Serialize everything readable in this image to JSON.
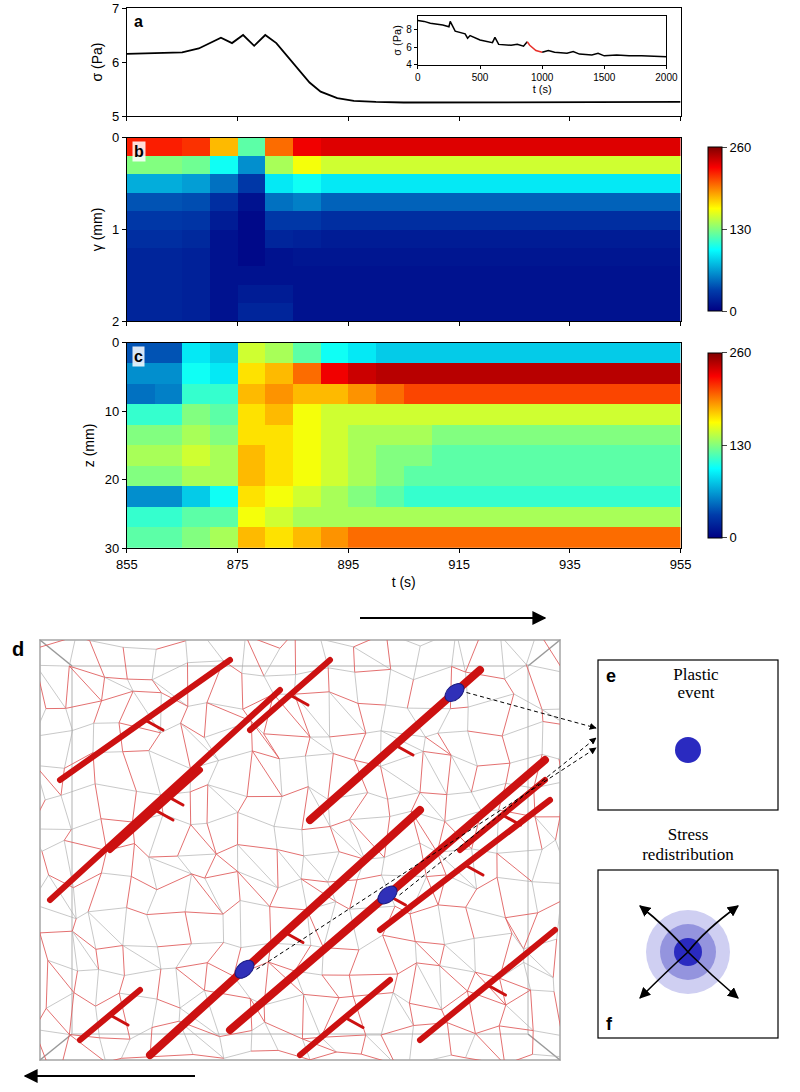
{
  "chart_data": [
    {
      "type": "line",
      "title": "a",
      "x": [
        855,
        860,
        865,
        868,
        870,
        872,
        874,
        876,
        878,
        880,
        882,
        884,
        886,
        888,
        890,
        893,
        896,
        900,
        905,
        910,
        920,
        930,
        940,
        955
      ],
      "values": [
        6.15,
        6.16,
        6.18,
        6.25,
        6.35,
        6.45,
        6.35,
        6.5,
        6.3,
        6.5,
        6.35,
        6.1,
        5.85,
        5.62,
        5.45,
        5.33,
        5.28,
        5.26,
        5.25,
        5.25,
        5.25,
        5.26,
        5.26,
        5.26
      ],
      "color": "#000000",
      "xlim": [
        855,
        955
      ],
      "xticks": [
        855,
        875,
        895,
        915,
        935,
        955
      ],
      "ylim": [
        5,
        7
      ],
      "yticks": [
        5,
        6,
        7
      ],
      "ylabel": "σ (Pa)",
      "tick_labels": "y"
    },
    {
      "type": "line",
      "xlabel": "t (s)",
      "ylabel": "σ (Pa)",
      "xlim": [
        0,
        2000
      ],
      "xticks": [
        0,
        500,
        1000,
        1500,
        2000
      ],
      "ylim": [
        4,
        9.5
      ],
      "yticks": [
        4,
        6,
        8
      ],
      "series": [
        {
          "color": "#000000",
          "x": [
            0,
            50,
            100,
            200,
            250,
            260,
            300,
            380,
            400,
            420,
            500,
            600,
            620,
            650,
            750,
            800,
            850,
            880,
            940,
            1000,
            1050,
            1100,
            1200,
            1250,
            1300,
            1400,
            1450,
            1500,
            1600,
            1700,
            1800,
            2000
          ],
          "values": [
            9.0,
            8.9,
            8.7,
            8.5,
            8.3,
            8.9,
            7.8,
            7.5,
            7.0,
            7.3,
            6.8,
            6.5,
            7.1,
            6.3,
            6.2,
            6.3,
            6.1,
            6.6,
            null,
            5.4,
            5.6,
            5.4,
            5.3,
            5.5,
            5.2,
            5.1,
            5.3,
            5.0,
            5.1,
            5.0,
            5.0,
            4.9
          ]
        },
        {
          "color": "#e8302a",
          "x": [
            880,
            900,
            950,
            1000
          ],
          "values": [
            6.6,
            6.2,
            5.6,
            5.4
          ]
        }
      ]
    },
    {
      "type": "heatmap",
      "title": "b",
      "x": [
        857.5,
        862.5,
        867.5,
        872.5,
        877.5,
        882.5,
        887.5,
        892.5,
        897.5,
        902.5,
        907.5,
        912.5,
        917.5,
        922.5,
        927.5,
        932.5,
        937.5,
        942.5,
        947.5,
        952.5
      ],
      "y": [
        0.1,
        0.3,
        0.5,
        0.7,
        0.9,
        1.1,
        1.3,
        1.5,
        1.7,
        1.9
      ],
      "cells": [
        [
          220,
          220,
          215,
          180,
          120,
          200,
          230,
          235,
          235,
          235,
          235,
          235,
          235,
          235,
          235,
          235,
          235,
          235,
          235,
          235
        ],
        [
          130,
          130,
          125,
          100,
          60,
          140,
          160,
          150,
          150,
          150,
          150,
          150,
          150,
          150,
          150,
          150,
          150,
          150,
          150,
          150
        ],
        [
          70,
          70,
          65,
          50,
          30,
          90,
          100,
          90,
          90,
          90,
          90,
          90,
          90,
          90,
          90,
          90,
          90,
          90,
          90,
          90
        ],
        [
          40,
          40,
          38,
          25,
          10,
          50,
          55,
          45,
          45,
          45,
          45,
          45,
          45,
          45,
          45,
          45,
          45,
          45,
          45,
          45
        ],
        [
          30,
          30,
          28,
          15,
          5,
          30,
          30,
          25,
          25,
          25,
          25,
          25,
          25,
          25,
          25,
          25,
          25,
          25,
          25,
          25
        ],
        [
          25,
          25,
          22,
          10,
          5,
          20,
          18,
          15,
          15,
          15,
          15,
          15,
          15,
          15,
          15,
          15,
          15,
          15,
          15,
          15
        ],
        [
          20,
          20,
          18,
          10,
          5,
          10,
          12,
          12,
          12,
          12,
          12,
          12,
          12,
          12,
          12,
          12,
          12,
          12,
          12,
          12
        ],
        [
          20,
          20,
          18,
          10,
          10,
          10,
          10,
          10,
          10,
          10,
          10,
          10,
          10,
          10,
          10,
          10,
          10,
          10,
          10,
          10
        ],
        [
          20,
          20,
          18,
          10,
          15,
          15,
          10,
          10,
          10,
          10,
          10,
          10,
          10,
          10,
          10,
          10,
          10,
          10,
          10,
          10
        ],
        [
          20,
          20,
          18,
          10,
          20,
          20,
          10,
          10,
          10,
          10,
          10,
          10,
          10,
          10,
          10,
          10,
          10,
          10,
          10,
          10
        ]
      ],
      "xlim": [
        855,
        955
      ],
      "xticks": [
        855,
        875,
        895,
        915,
        935,
        955
      ],
      "ylim": [
        2,
        0
      ],
      "yticks": [
        0,
        1,
        2
      ],
      "ylabel": "γ (mm)",
      "zlim": [
        0,
        260
      ],
      "zticks": [
        0,
        130,
        260
      ],
      "tick_labels": "y"
    },
    {
      "type": "heatmap",
      "title": "c",
      "x": [
        857.5,
        862.5,
        867.5,
        872.5,
        877.5,
        882.5,
        887.5,
        892.5,
        897.5,
        902.5,
        907.5,
        912.5,
        917.5,
        922.5,
        927.5,
        932.5,
        937.5,
        942.5,
        947.5,
        952.5
      ],
      "y": [
        1.5,
        4.5,
        7.5,
        10.5,
        13.5,
        16.5,
        19.5,
        22.5,
        25.5,
        28.5
      ],
      "cells": [
        [
          40,
          40,
          90,
          80,
          150,
          140,
          120,
          100,
          90,
          80,
          80,
          80,
          80,
          80,
          80,
          80,
          80,
          80,
          80,
          80
        ],
        [
          60,
          60,
          100,
          90,
          170,
          180,
          200,
          230,
          240,
          245,
          245,
          245,
          245,
          245,
          245,
          245,
          245,
          245,
          245,
          245
        ],
        [
          50,
          55,
          110,
          110,
          180,
          190,
          180,
          180,
          190,
          200,
          210,
          210,
          210,
          210,
          210,
          210,
          210,
          210,
          210,
          210
        ],
        [
          110,
          110,
          130,
          120,
          170,
          180,
          160,
          150,
          150,
          150,
          150,
          150,
          150,
          150,
          150,
          150,
          150,
          150,
          150,
          150
        ],
        [
          130,
          130,
          140,
          130,
          170,
          170,
          160,
          150,
          140,
          140,
          140,
          130,
          130,
          130,
          130,
          130,
          130,
          130,
          130,
          130
        ],
        [
          140,
          140,
          150,
          140,
          180,
          170,
          160,
          150,
          140,
          130,
          130,
          120,
          120,
          120,
          120,
          120,
          120,
          120,
          120,
          120
        ],
        [
          130,
          130,
          140,
          140,
          180,
          170,
          160,
          150,
          140,
          130,
          120,
          120,
          120,
          120,
          120,
          120,
          120,
          120,
          120,
          120
        ],
        [
          60,
          60,
          80,
          100,
          170,
          160,
          150,
          140,
          130,
          120,
          110,
          110,
          110,
          110,
          110,
          110,
          110,
          110,
          110,
          110
        ],
        [
          110,
          110,
          120,
          120,
          160,
          150,
          140,
          140,
          140,
          140,
          140,
          140,
          140,
          140,
          140,
          140,
          140,
          140,
          140,
          140
        ],
        [
          120,
          120,
          130,
          140,
          180,
          170,
          180,
          190,
          200,
          200,
          200,
          200,
          200,
          200,
          200,
          200,
          200,
          200,
          200,
          200
        ]
      ],
      "xlim": [
        855,
        955
      ],
      "xticks": [
        855,
        875,
        895,
        915,
        935,
        955
      ],
      "ylim": [
        30,
        0
      ],
      "yticks": [
        0,
        10,
        20,
        30
      ],
      "xlabel": "t (s)",
      "ylabel": "z (mm)",
      "zlim": [
        0,
        260
      ],
      "zticks": [
        0,
        130,
        260
      ]
    }
  ],
  "diagram": {
    "d": {
      "label": "d"
    },
    "e": {
      "label": "e",
      "text": "Plastic event"
    },
    "f": {
      "label": "f",
      "text": "Stress redistribution"
    }
  }
}
